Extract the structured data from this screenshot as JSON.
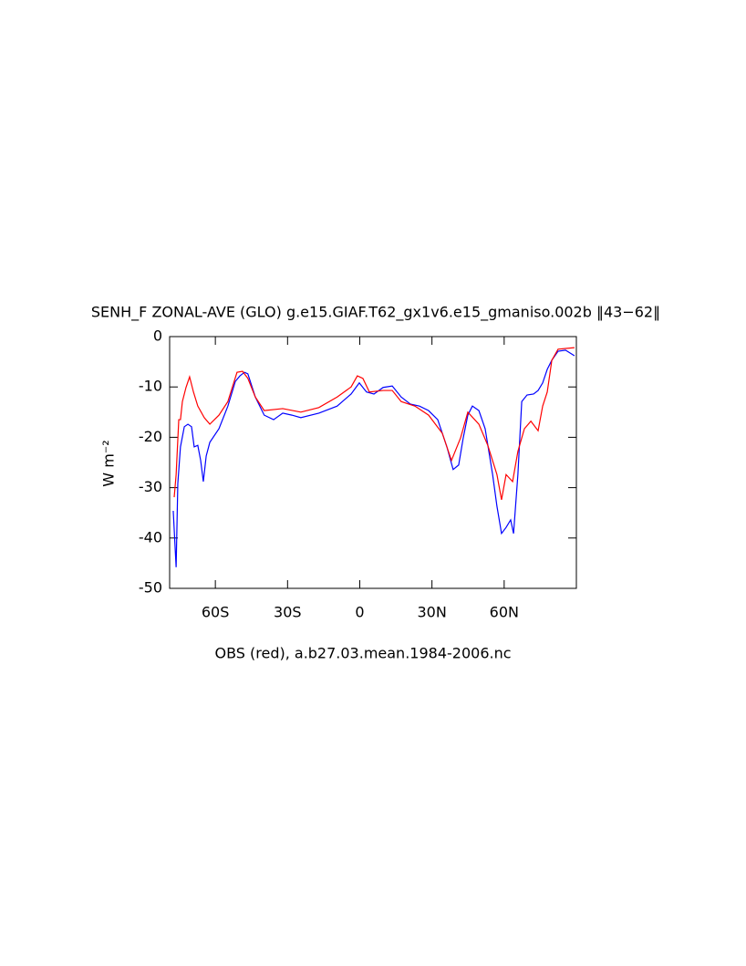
{
  "chart_data": {
    "type": "line",
    "title": "SENH_F ZONAL-AVE (GLO) g.e15.GIAF.T62_gx1v6.e15_gmaniso.002b ‖43−62‖",
    "xlabel": "OBS (red), a.b27.03.mean.1984-2006.nc",
    "ylabel": "W m⁻²",
    "xlim": [
      -79,
      90
    ],
    "ylim": [
      -50,
      0
    ],
    "xticks": [
      {
        "value": -60,
        "label": "60S"
      },
      {
        "value": -30,
        "label": "30S"
      },
      0,
      {
        "value": 30,
        "label": "30N"
      },
      {
        "value": 60,
        "label": "60N"
      }
    ],
    "yticks": [
      0,
      -10,
      -20,
      -30,
      -40,
      -50
    ],
    "series": [
      {
        "color": "#0000ff",
        "x": [
          -77.5,
          -76.3,
          -75.6,
          -74.5,
          -72.9,
          -71.4,
          -69.9,
          -68.8,
          -67.3,
          -66.1,
          -65,
          -63.8,
          -62.3,
          -58.5,
          -54.8,
          -51.7,
          -49.8,
          -47.9,
          -46.5,
          -43.4,
          -39.7,
          -35.8,
          -32,
          -28.2,
          -24.5,
          -17,
          -9.4,
          -3.6,
          -0.2,
          2.8,
          5.9,
          9.7,
          13.5,
          17.2,
          21,
          24.8,
          28.6,
          32.4,
          36.2,
          38.8,
          41.1,
          43,
          44.9,
          46.8,
          49.5,
          52.1,
          55.2,
          57,
          58.9,
          60.8,
          62.7,
          63.9,
          65.7,
          67.3,
          69.5,
          72.2,
          74.1,
          76,
          77.9,
          79.8,
          82.4,
          85.5,
          89.2
        ],
        "values": [
          -34.6,
          -45.8,
          -29.2,
          -21.9,
          -17.9,
          -17.4,
          -17.9,
          -21.9,
          -21.6,
          -24.6,
          -28.8,
          -23.7,
          -21,
          -18.3,
          -13.8,
          -8.9,
          -7.8,
          -7.1,
          -7.4,
          -12,
          -15.6,
          -16.5,
          -15.2,
          -15.6,
          -16.1,
          -15.2,
          -13.8,
          -11.4,
          -9.2,
          -11,
          -11.4,
          -10.1,
          -9.8,
          -12,
          -13.4,
          -13.8,
          -14.7,
          -16.5,
          -21.9,
          -26.4,
          -25.5,
          -20.1,
          -15.6,
          -13.8,
          -14.7,
          -18.3,
          -27.4,
          -33.7,
          -39.1,
          -37.9,
          -36.4,
          -39.1,
          -27.4,
          -12.9,
          -11.6,
          -11.4,
          -10.7,
          -9.2,
          -6.5,
          -4.7,
          -2.9,
          -2.7,
          -3.8
        ]
      },
      {
        "color": "#ff0000",
        "x": [
          -77.1,
          -76.3,
          -75.2,
          -74.5,
          -73.7,
          -72.2,
          -70.7,
          -69.1,
          -67.3,
          -64.6,
          -62.3,
          -58.5,
          -54.8,
          -51,
          -48.7,
          -46.5,
          -43.4,
          -39.7,
          -32,
          -24.5,
          -17,
          -9.4,
          -3.6,
          -1,
          1.3,
          4,
          9.7,
          13.5,
          17.2,
          22.9,
          28.6,
          34.3,
          38.1,
          41.9,
          44.9,
          49.5,
          53.2,
          57,
          58.9,
          60.8,
          63.5,
          65.7,
          68.4,
          71.1,
          74.1,
          76,
          77.9,
          79.8,
          82.4,
          89.2
        ],
        "values": [
          -31.9,
          -27.4,
          -16.5,
          -16.5,
          -12.9,
          -10.1,
          -8,
          -11,
          -13.8,
          -16.1,
          -17.4,
          -15.6,
          -12.9,
          -7.1,
          -6.9,
          -8.3,
          -12,
          -14.7,
          -14.3,
          -15,
          -14.1,
          -12,
          -10,
          -7.8,
          -8.3,
          -11,
          -10.7,
          -10.7,
          -12.9,
          -13.8,
          -15.6,
          -19.2,
          -24.6,
          -20.1,
          -15,
          -17.4,
          -21.6,
          -27.4,
          -32.4,
          -27.4,
          -28.8,
          -22.8,
          -18.3,
          -16.8,
          -18.7,
          -13.8,
          -11,
          -4.7,
          -2.5,
          -2.2
        ]
      }
    ]
  }
}
